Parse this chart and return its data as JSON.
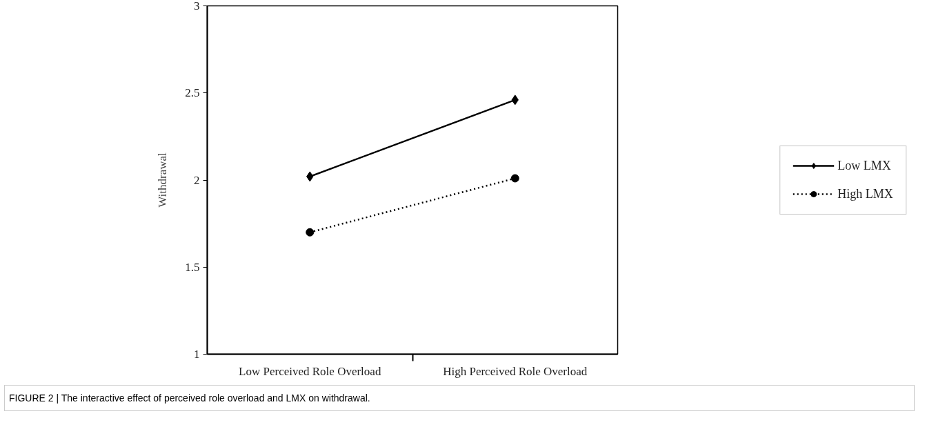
{
  "chart_data": {
    "type": "line",
    "categories": [
      "Low Perceived Role Overload",
      "High Perceived Role Overload"
    ],
    "ylabel": "Withdrawal",
    "ylim": [
      1,
      3
    ],
    "yticks": [
      1,
      1.5,
      2,
      2.5,
      3
    ],
    "series": [
      {
        "name": "Low LMX",
        "color": "#000000",
        "values": [
          2.02,
          2.46
        ],
        "marker": "diamond",
        "line_style": "solid"
      },
      {
        "name": "High LMX",
        "color": "#000000",
        "values": [
          1.7,
          2.01
        ],
        "marker": "circle",
        "line_style": "dotted"
      }
    ],
    "legend": "right",
    "grid": false,
    "annotations": [
      "FIGURE 2 | The interactive effect of perceived role overload and LMX on withdrawal."
    ]
  }
}
